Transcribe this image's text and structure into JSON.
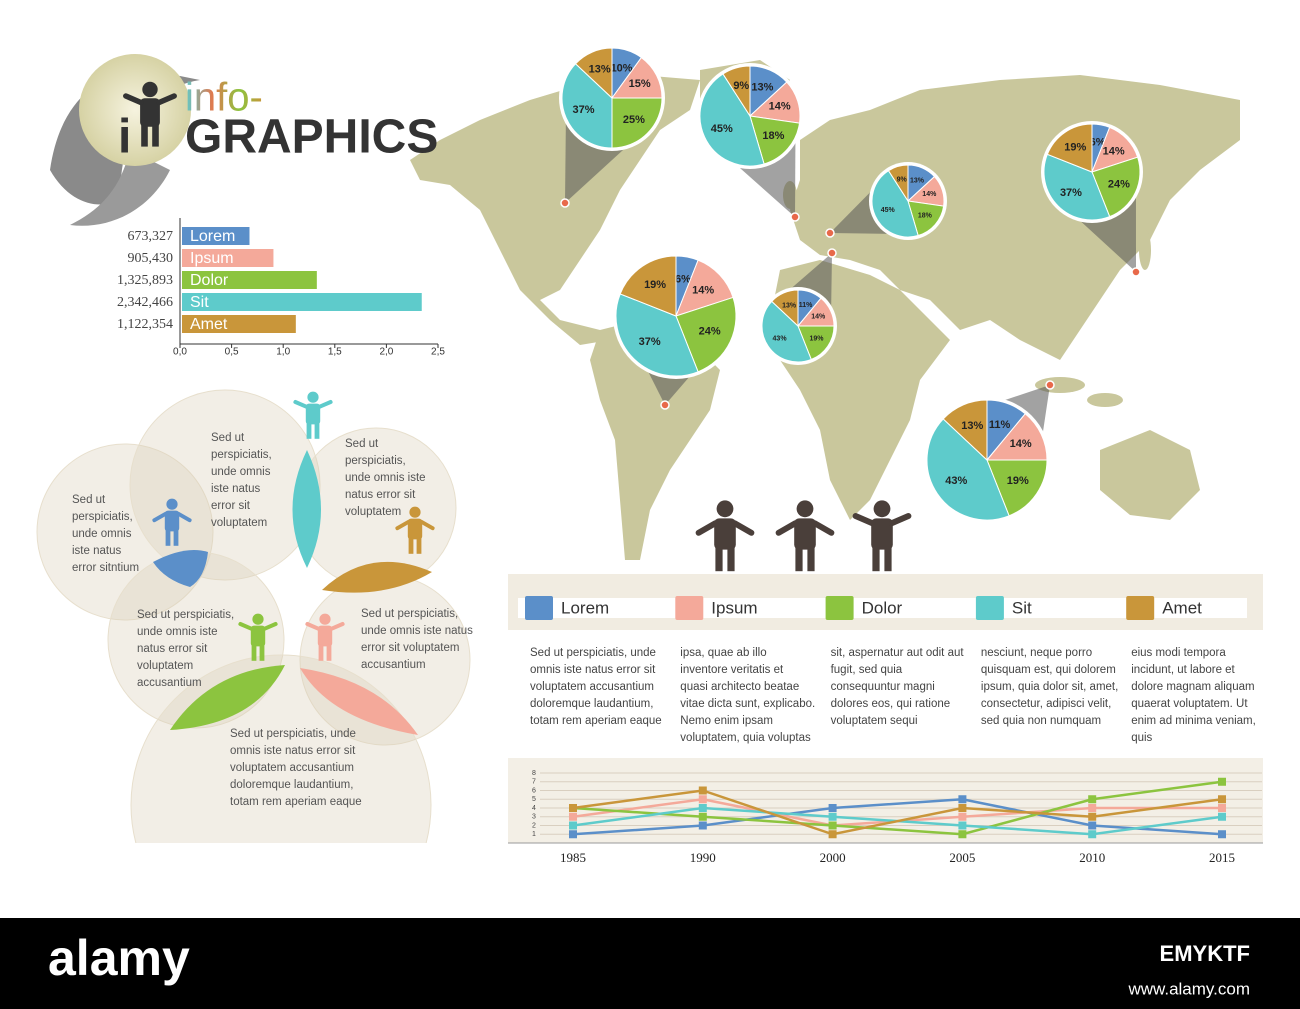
{
  "title": {
    "small": "info-",
    "initial": "i",
    "big": "GRAPHICS"
  },
  "venn_texts": [
    [
      "Sed ut",
      "perspiciatis,",
      "unde omnis",
      "iste natus",
      "error sit",
      "voluptatem"
    ],
    [
      "Sed ut",
      "perspiciatis,",
      "unde omnis iste",
      "natus error sit",
      "voluptatem"
    ],
    [
      "Sed ut",
      "perspiciatis,",
      "unde omnis",
      "iste natus",
      "error sitntium"
    ],
    [
      "Sed ut perspiciatis,",
      "unde omnis iste",
      "natus error sit",
      "voluptatem",
      "accusantium"
    ],
    [
      "Sed ut perspiciatis,",
      "unde omnis iste natus",
      "error sit voluptatem",
      "accusantium"
    ],
    [
      "Sed ut perspiciatis, unde",
      "omnis iste natus error sit",
      "voluptatem accusantium",
      "doloremque laudantium,",
      "totam rem aperiam eaque"
    ]
  ],
  "columns": [
    [
      "Sed ut perspiciatis, unde",
      "omnis iste natus error sit",
      "voluptatem accusantium",
      "doloremque laudantium,",
      "totam rem aperiam eaque"
    ],
    [
      "ipsa, quae ab illo",
      "inventore veritatis et",
      "quasi architecto beatae",
      "vitae dicta sunt, explicabo.",
      "Nemo enim ipsam",
      "voluptatem, quia voluptas"
    ],
    [
      "sit, aspernatur aut odit aut",
      "fugit, sed quia",
      "consequuntur magni",
      "dolores eos, qui ratione",
      "voluptatem sequi"
    ],
    [
      "nesciunt, neque porro",
      "quisquam est, qui dolorem",
      "ipsum, quia dolor sit, amet,",
      "consectetur, adipisci velit,",
      "sed quia non numquam"
    ],
    [
      "eius modi tempora",
      "incidunt, ut labore et",
      "dolore magnam aliquam",
      "quaerat voluptatem. Ut",
      "enim ad minima veniam,",
      "quis"
    ]
  ],
  "footer": {
    "brand": "alamy",
    "code": "EMYKTF",
    "url": "www.alamy.com"
  },
  "chart_data": [
    {
      "type": "hbar",
      "categories": [
        "Lorem",
        "Ipsum",
        "Dolor",
        "Sit",
        "Amet"
      ],
      "values": [
        0.673327,
        0.90543,
        1.325893,
        2.342466,
        1.122354
      ],
      "value_labels": [
        "673,327",
        "905,430",
        "1,325,893",
        "2,342,466",
        "1,122,354"
      ],
      "colors": [
        "#5b8fc9",
        "#f4a99a",
        "#8cc43f",
        "#5ecbcb",
        "#c9963a"
      ],
      "xlim": [
        0,
        2.5
      ],
      "xticks": [
        {
          "value": 0,
          "label": "0,0"
        },
        {
          "value": 0.5,
          "label": "0,5"
        },
        {
          "value": 1,
          "label": "1,0"
        },
        {
          "value": 1.5,
          "label": "1,5"
        },
        {
          "value": 2,
          "label": "2,0"
        },
        {
          "value": 2.5,
          "label": "2,5"
        }
      ]
    },
    {
      "type": "pie",
      "values": [
        10,
        15,
        25,
        37,
        13
      ],
      "value_labels": [
        "10%",
        "15%",
        "25%",
        "37%",
        "13%"
      ],
      "colors": [
        "#5b8fc9",
        "#f4a99a",
        "#8cc43f",
        "#5ecbcb",
        "#c9963a"
      ]
    },
    {
      "type": "pie",
      "values": [
        13,
        14,
        18,
        45,
        9
      ],
      "value_labels": [
        "13%",
        "14%",
        "18%",
        "45%",
        "9%"
      ],
      "colors": [
        "#5b8fc9",
        "#f4a99a",
        "#8cc43f",
        "#5ecbcb",
        "#c9963a"
      ]
    },
    {
      "type": "pie",
      "values": [
        6,
        14,
        24,
        37,
        19
      ],
      "value_labels": [
        "6%",
        "14%",
        "24%",
        "37%",
        "19%"
      ],
      "colors": [
        "#5b8fc9",
        "#f4a99a",
        "#8cc43f",
        "#5ecbcb",
        "#c9963a"
      ]
    },
    {
      "type": "pie",
      "values": [
        13,
        14,
        18,
        45,
        9
      ],
      "value_labels": [
        "13%",
        "14%",
        "18%",
        "45%",
        "9%"
      ],
      "colors": [
        "#5b8fc9",
        "#f4a99a",
        "#8cc43f",
        "#5ecbcb",
        "#c9963a"
      ]
    },
    {
      "type": "pie",
      "values": [
        6,
        14,
        24,
        37,
        19
      ],
      "value_labels": [
        "6%",
        "14%",
        "24%",
        "37%",
        "19%"
      ],
      "colors": [
        "#5b8fc9",
        "#f4a99a",
        "#8cc43f",
        "#5ecbcb",
        "#c9963a"
      ]
    },
    {
      "type": "pie",
      "values": [
        11,
        14,
        19,
        43,
        13
      ],
      "value_labels": [
        "11%",
        "14%",
        "19%",
        "43%",
        "13%"
      ],
      "colors": [
        "#5b8fc9",
        "#f4a99a",
        "#8cc43f",
        "#5ecbcb",
        "#c9963a"
      ]
    },
    {
      "type": "pie",
      "values": [
        11,
        14,
        19,
        43,
        13
      ],
      "value_labels": [
        "11%",
        "14%",
        "19%",
        "43%",
        "13%"
      ],
      "colors": [
        "#5b8fc9",
        "#f4a99a",
        "#8cc43f",
        "#5ecbcb",
        "#c9963a"
      ]
    },
    {
      "type": "line",
      "categories": [
        "1985",
        "1990",
        "2000",
        "2005",
        "2010",
        "2015"
      ],
      "series": [
        {
          "name": "Lorem",
          "color": "#5b8fc9",
          "values": [
            1,
            2,
            4,
            5,
            2,
            1
          ]
        },
        {
          "name": "Ipsum",
          "color": "#f4a99a",
          "values": [
            3,
            5,
            2,
            3,
            4,
            4
          ]
        },
        {
          "name": "Dolor",
          "color": "#8cc43f",
          "values": [
            4,
            3,
            2,
            1,
            5,
            7
          ]
        },
        {
          "name": "Sit",
          "color": "#5ecbcb",
          "values": [
            2,
            4,
            3,
            2,
            1,
            3
          ]
        },
        {
          "name": "Amet",
          "color": "#c9963a",
          "values": [
            4,
            6,
            1,
            4,
            3,
            5
          ]
        }
      ],
      "ylim": [
        0,
        8
      ],
      "yticks": [
        1,
        2,
        3,
        4,
        5,
        6,
        7,
        8
      ],
      "grid": true
    }
  ]
}
